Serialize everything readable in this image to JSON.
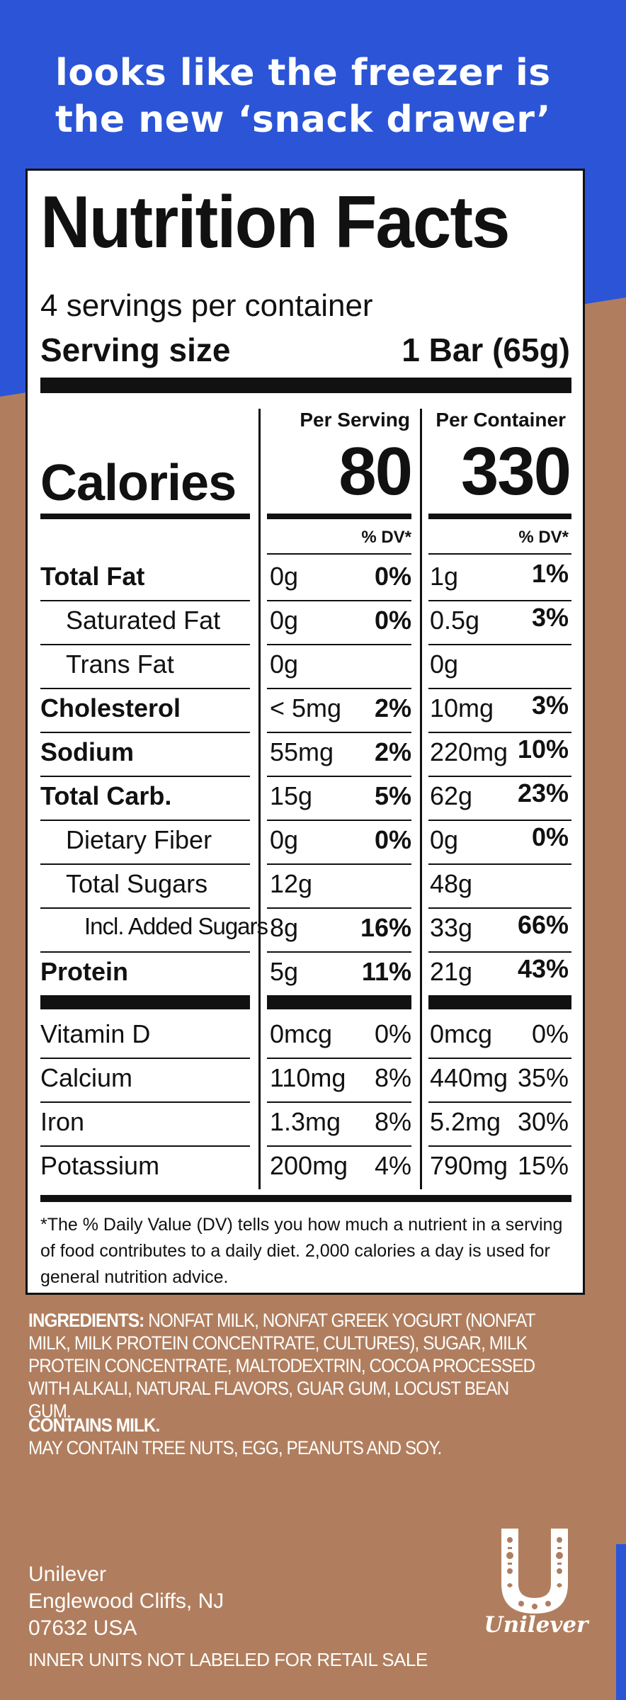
{
  "headline": {
    "line1": "looks like the freezer is",
    "line2": "the new ‘snack drawer’"
  },
  "nutrition": {
    "title": "Nutrition Facts",
    "servings_per_container": "4 servings per container",
    "serving_size_label": "Serving size",
    "serving_size_value": "1 Bar (65g)",
    "col_per_serving": "Per Serving",
    "col_per_container": "Per Container",
    "calories_label": "Calories",
    "calories_per_serving": "80",
    "calories_per_container": "330",
    "dv_header": "% DV*",
    "rows": [
      {
        "label": "Total Fat",
        "serv_amt": "0g",
        "serv_dv": "0%",
        "cont_amt": "1g",
        "cont_dv": "1%"
      },
      {
        "label": "Saturated Fat",
        "serv_amt": "0g",
        "serv_dv": "0%",
        "cont_amt": "0.5g",
        "cont_dv": "3%"
      },
      {
        "label": "Trans Fat",
        "serv_amt": "0g",
        "serv_dv": "",
        "cont_amt": "0g",
        "cont_dv": ""
      },
      {
        "label": "Cholesterol",
        "serv_amt": "< 5mg",
        "serv_dv": "2%",
        "cont_amt": "10mg",
        "cont_dv": "3%"
      },
      {
        "label": "Sodium",
        "serv_amt": "55mg",
        "serv_dv": "2%",
        "cont_amt": "220mg",
        "cont_dv": "10%"
      },
      {
        "label": "Total Carb.",
        "serv_amt": "15g",
        "serv_dv": "5%",
        "cont_amt": "62g",
        "cont_dv": "23%"
      },
      {
        "label": "Dietary Fiber",
        "serv_amt": "0g",
        "serv_dv": "0%",
        "cont_amt": "0g",
        "cont_dv": "0%"
      },
      {
        "label": "Total Sugars",
        "serv_amt": "12g",
        "serv_dv": "",
        "cont_amt": "48g",
        "cont_dv": ""
      },
      {
        "label": "Incl. Added Sugars",
        "serv_amt": "8g",
        "serv_dv": "16%",
        "cont_amt": "33g",
        "cont_dv": "66%"
      },
      {
        "label": "Protein",
        "serv_amt": "5g",
        "serv_dv": "11%",
        "cont_amt": "21g",
        "cont_dv": "43%"
      }
    ],
    "vitamins": [
      {
        "label": "Vitamin D",
        "serv_amt": "0mcg",
        "serv_dv": "0%",
        "cont_amt": "0mcg",
        "cont_dv": "0%"
      },
      {
        "label": "Calcium",
        "serv_amt": "110mg",
        "serv_dv": "8%",
        "cont_amt": "440mg",
        "cont_dv": "35%"
      },
      {
        "label": "Iron",
        "serv_amt": "1.3mg",
        "serv_dv": "8%",
        "cont_amt": "5.2mg",
        "cont_dv": "30%"
      },
      {
        "label": "Potassium",
        "serv_amt": "200mg",
        "serv_dv": "4%",
        "cont_amt": "790mg",
        "cont_dv": "15%"
      }
    ],
    "footnote": "*The % Daily Value (DV) tells you how much a nutrient in a serving of food contributes to a daily diet. 2,000 calories a day is used for general nutrition advice."
  },
  "ingredients": {
    "label": "INGREDIENTS:",
    "text": " NONFAT MILK, NONFAT GREEK YOGURT (NONFAT MILK, MILK PROTEIN CONCENTRATE, CULTURES), SUGAR, MILK PROTEIN CONCENTRATE, MALTODEXTRIN, COCOA PROCESSED WITH ALKALI, NATURAL FLAVORS, GUAR GUM, LOCUST BEAN GUM."
  },
  "allergens": {
    "contains": "CONTAINS MILK.",
    "may_contain": "MAY CONTAIN TREE NUTS, EGG, PEANUTS AND SOY."
  },
  "company": {
    "name": "Unilever",
    "city": "Englewood Cliffs, NJ",
    "zip": "07632 USA",
    "retail_note": "INNER UNITS NOT LABELED FOR RETAIL SALE",
    "logo_word": "Unilever"
  },
  "colors": {
    "blue": "#2b55d6",
    "brown": "#b07e5e",
    "panel": "#ffffff",
    "ink": "#111111"
  }
}
